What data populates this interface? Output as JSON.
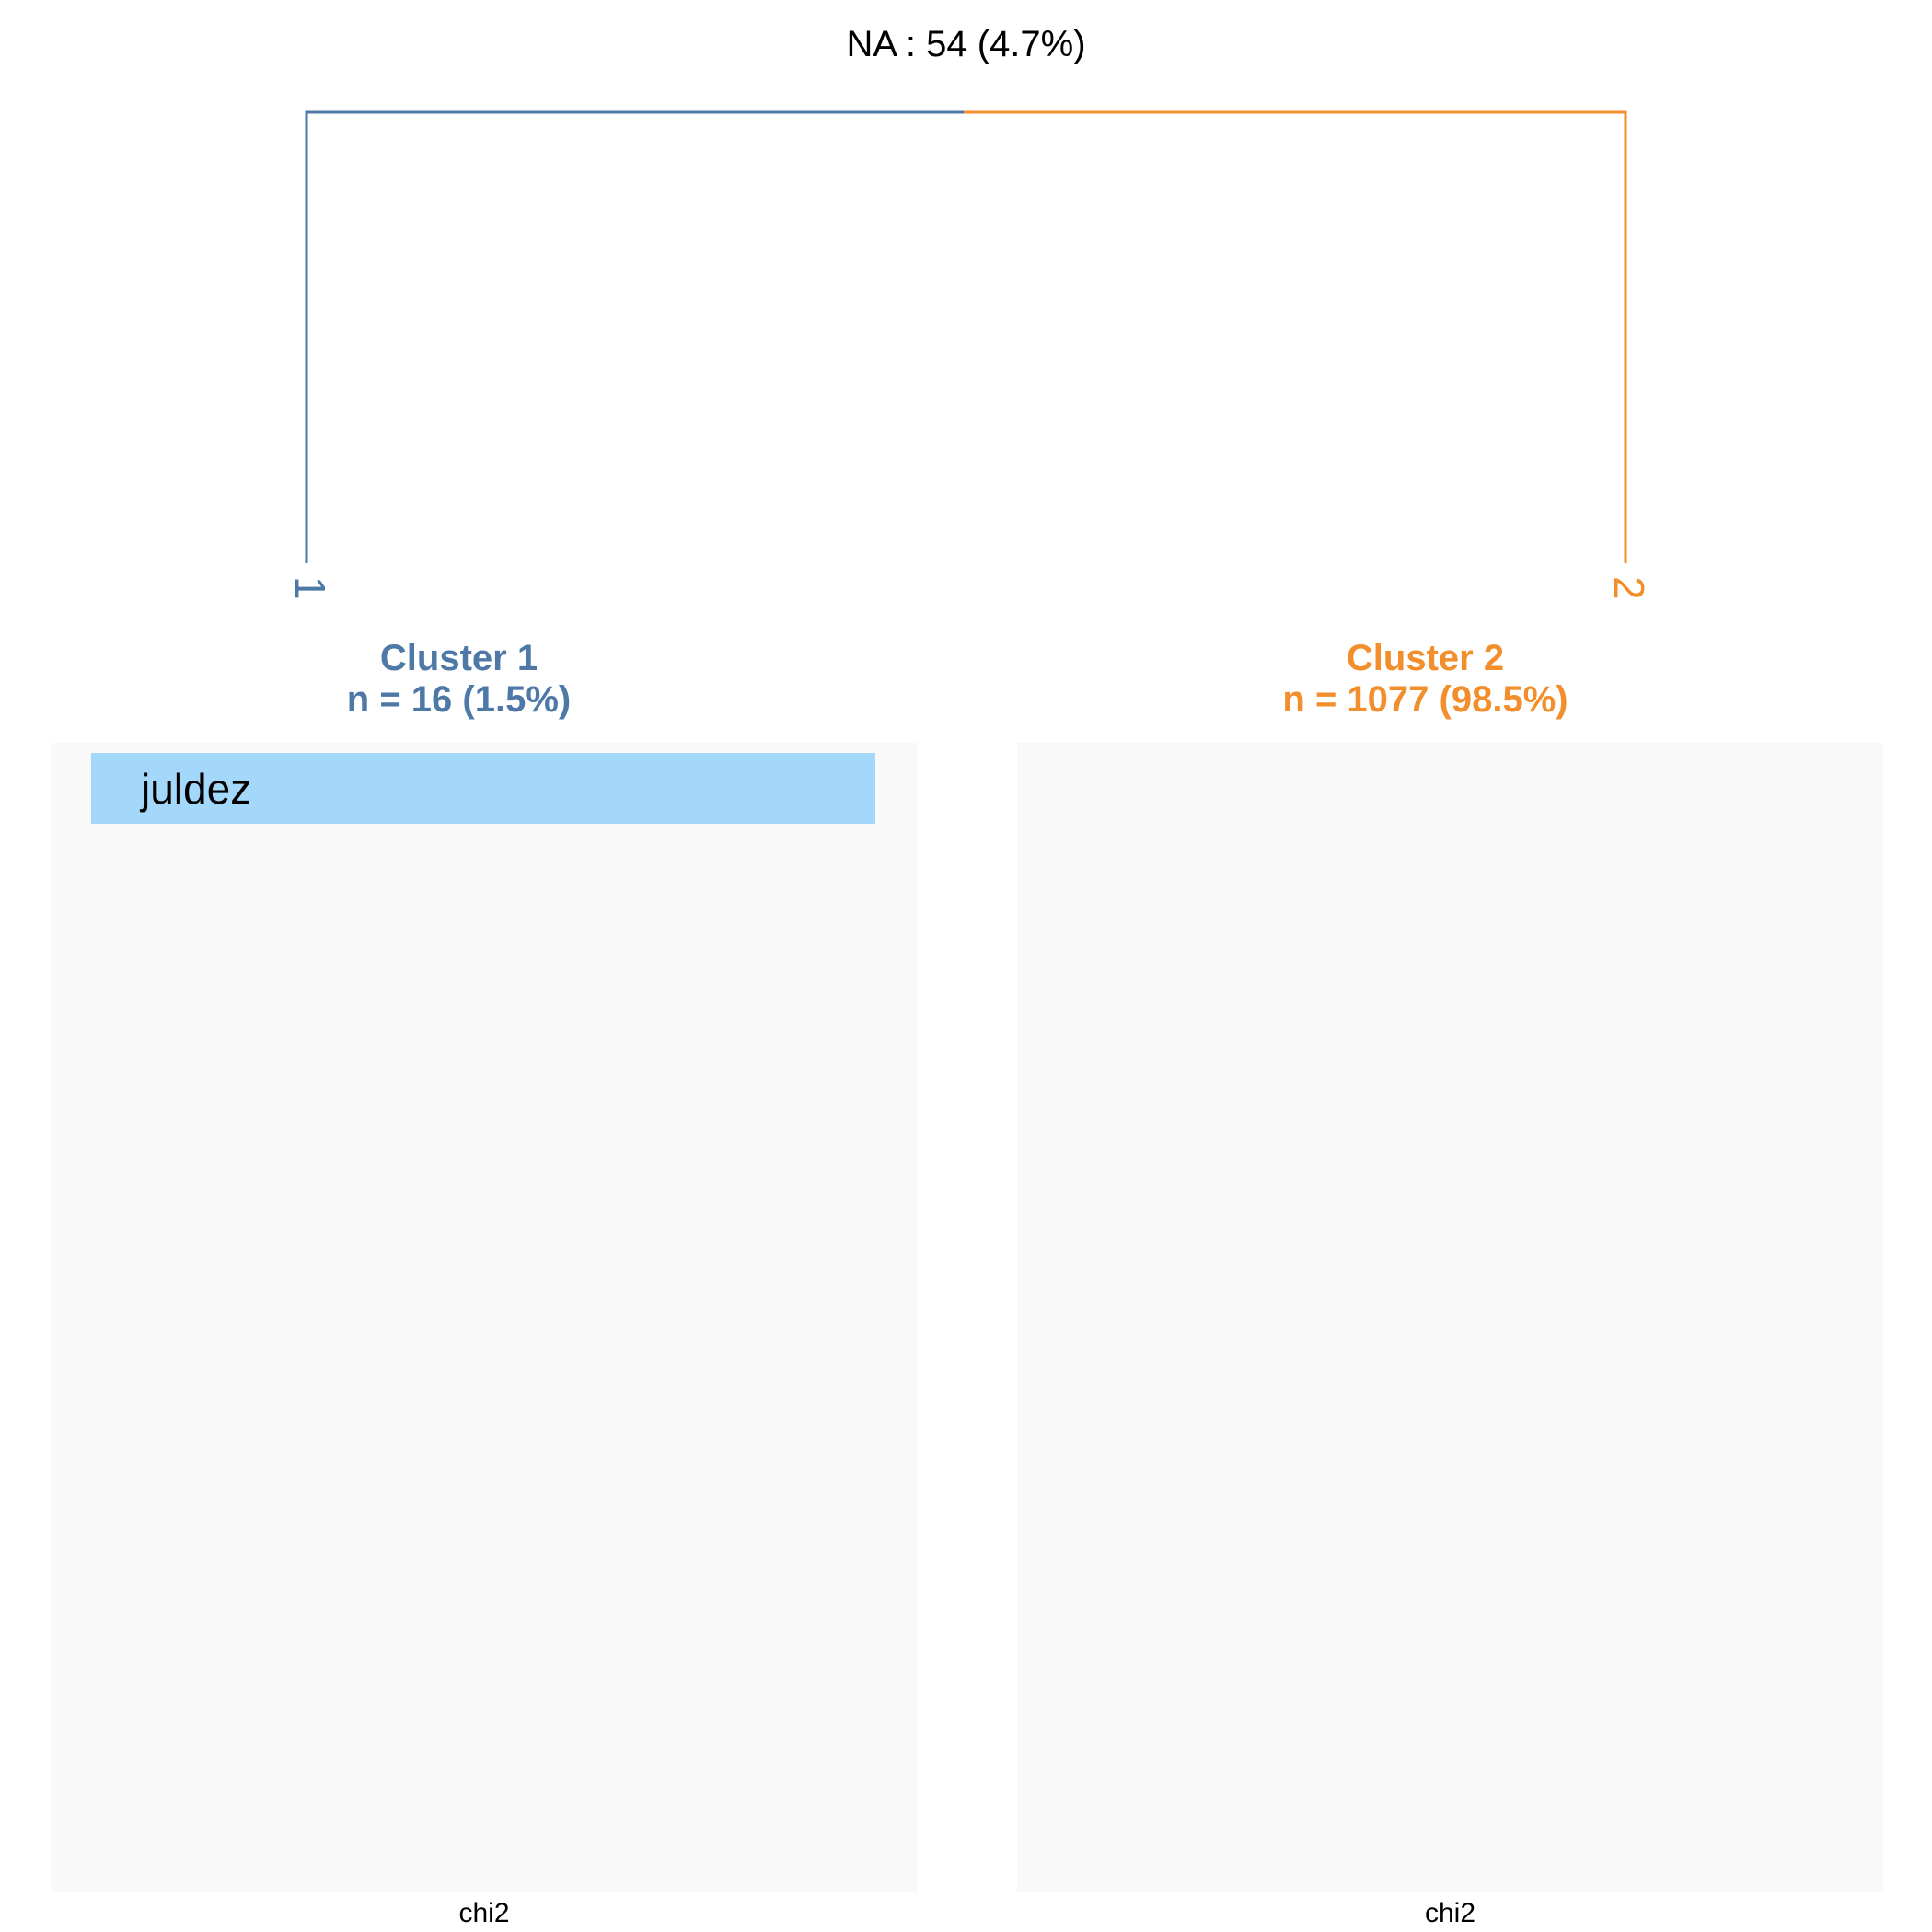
{
  "header": {
    "na_label": "NA : 54 (4.7%)"
  },
  "colors": {
    "cluster1": "#4e79a7",
    "cluster2": "#f28e2b",
    "word_bar": "#a3d8fb",
    "panel_bg": "#f9f9f9"
  },
  "dendrogram": {
    "leaves": [
      {
        "id": "cluster-1",
        "label": "1",
        "color": "#4e79a7"
      },
      {
        "id": "cluster-2",
        "label": "2",
        "color": "#f28e2b"
      }
    ]
  },
  "clusters": [
    {
      "title": "Cluster 1",
      "count_label": "n = 16 (1.5%)",
      "words": [
        {
          "word": "juldez",
          "fill": 1.0
        }
      ],
      "xlabel": "chi2"
    },
    {
      "title": "Cluster 2",
      "count_label": "n = 1077 (98.5%)",
      "words": [],
      "xlabel": "chi2"
    }
  ]
}
